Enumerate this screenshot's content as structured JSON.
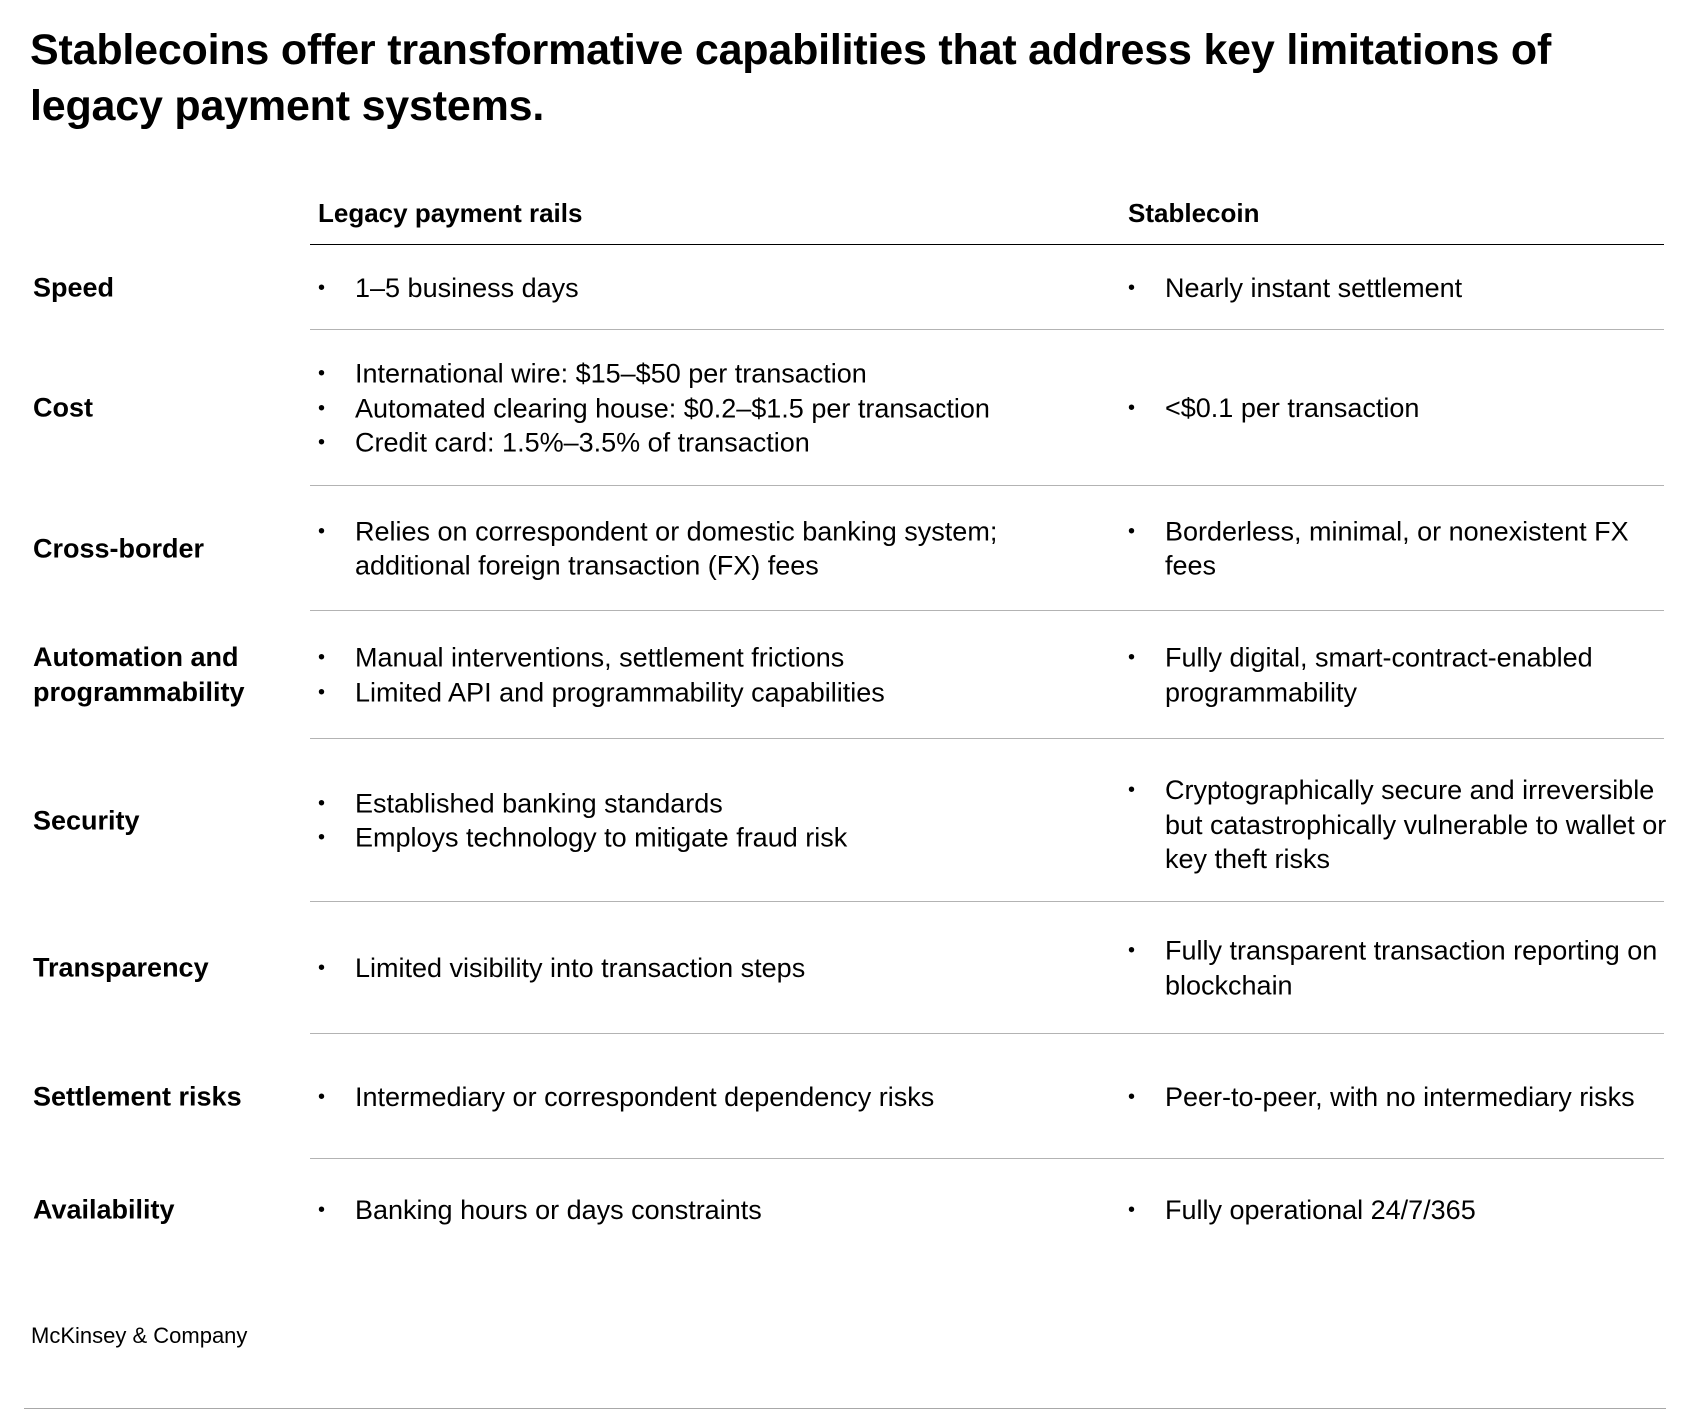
{
  "title": "Stablecoins offer transformative capabilities that address key limitations of legacy payment systems.",
  "columns": {
    "legacy": "Legacy payment rails",
    "stablecoin": "Stablecoin"
  },
  "rows": [
    {
      "label": "Speed",
      "legacy": [
        "1–5 business days"
      ],
      "stablecoin": [
        "Nearly instant settlement"
      ]
    },
    {
      "label": "Cost",
      "legacy": [
        "International wire: $15–$50 per transaction",
        "Automated clearing house: $0.2–$1.5 per transaction",
        "Credit card: 1.5%–3.5% of transaction"
      ],
      "stablecoin": [
        "<$0.1 per transaction"
      ]
    },
    {
      "label": "Cross-border",
      "legacy": [
        "Relies on correspondent or domestic banking system; additional foreign transaction (FX) fees"
      ],
      "stablecoin": [
        "Borderless, minimal, or nonexistent FX fees"
      ]
    },
    {
      "label": "Automation and programmability",
      "legacy": [
        "Manual interventions, settlement frictions",
        "Limited API and programmability capabilities"
      ],
      "stablecoin": [
        "Fully digital, smart-contract-enabled programmability"
      ]
    },
    {
      "label": "Security",
      "legacy": [
        "Established banking standards",
        "Employs technology to mitigate fraud risk"
      ],
      "stablecoin": [
        "Cryptographically secure and irreversible but catastrophically vulnerable to wallet or key theft risks"
      ]
    },
    {
      "label": "Transparency",
      "legacy": [
        "Limited visibility into transaction steps"
      ],
      "stablecoin": [
        "Fully transparent transaction reporting on blockchain"
      ]
    },
    {
      "label": "Settlement risks",
      "legacy": [
        "Intermediary or correspondent dependency risks"
      ],
      "stablecoin": [
        "Peer-to-peer, with no intermediary risks"
      ]
    },
    {
      "label": "Availability",
      "legacy": [
        "Banking hours or days constraints"
      ],
      "stablecoin": [
        "Fully operational 24/7/365"
      ]
    }
  ],
  "source": "McKinsey & Company"
}
